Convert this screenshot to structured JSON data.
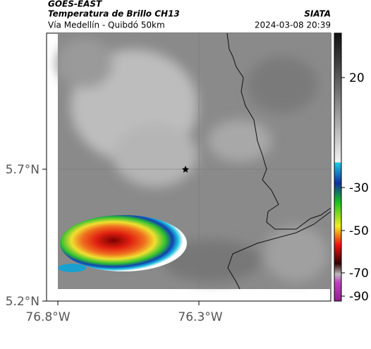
{
  "header": {
    "title": "GOES-EAST",
    "subtitle": "Temperatura de Brillo CH13",
    "route": "Vía Medellín - Quibdó 50km",
    "source": "SIATA",
    "datetime": "2024-03-08 20:39"
  },
  "map": {
    "lat_labels": [
      "5.7°N",
      "5.2°N"
    ],
    "lon_labels": [
      "76.8°W",
      "76.3°W"
    ]
  },
  "colorbar": {
    "ticks": [
      20,
      -30,
      -50,
      -70,
      -90
    ]
  }
}
